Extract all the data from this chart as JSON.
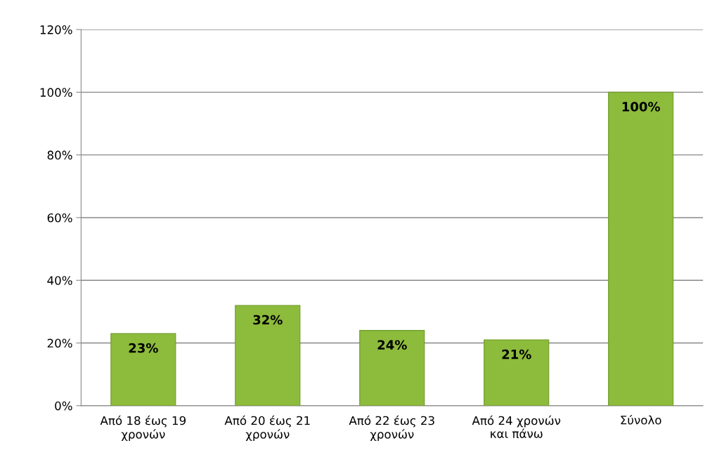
{
  "chart_data": {
    "type": "bar",
    "categories": [
      "Από 18 έως 19\nχρονών",
      "Από 20 έως 21\nχρονών",
      "Από 22 έως 23\nχρονών",
      "Από 24 χρονών\nκαι πάνω",
      "Σύνολο"
    ],
    "values": [
      23,
      32,
      24,
      21,
      100
    ],
    "value_labels": [
      "23%",
      "32%",
      "24%",
      "21%",
      "100%"
    ],
    "color": "#8dbb3c",
    "ylim": [
      0,
      120
    ],
    "yticks": [
      {
        "value": 0,
        "label": "0%"
      },
      {
        "value": 20,
        "label": "20%"
      },
      {
        "value": 40,
        "label": "40%"
      },
      {
        "value": 60,
        "label": "60%"
      },
      {
        "value": 80,
        "label": "80%"
      },
      {
        "value": 100,
        "label": "100%"
      },
      {
        "value": 120,
        "label": "120%"
      }
    ],
    "grid": "y",
    "legend": false
  }
}
